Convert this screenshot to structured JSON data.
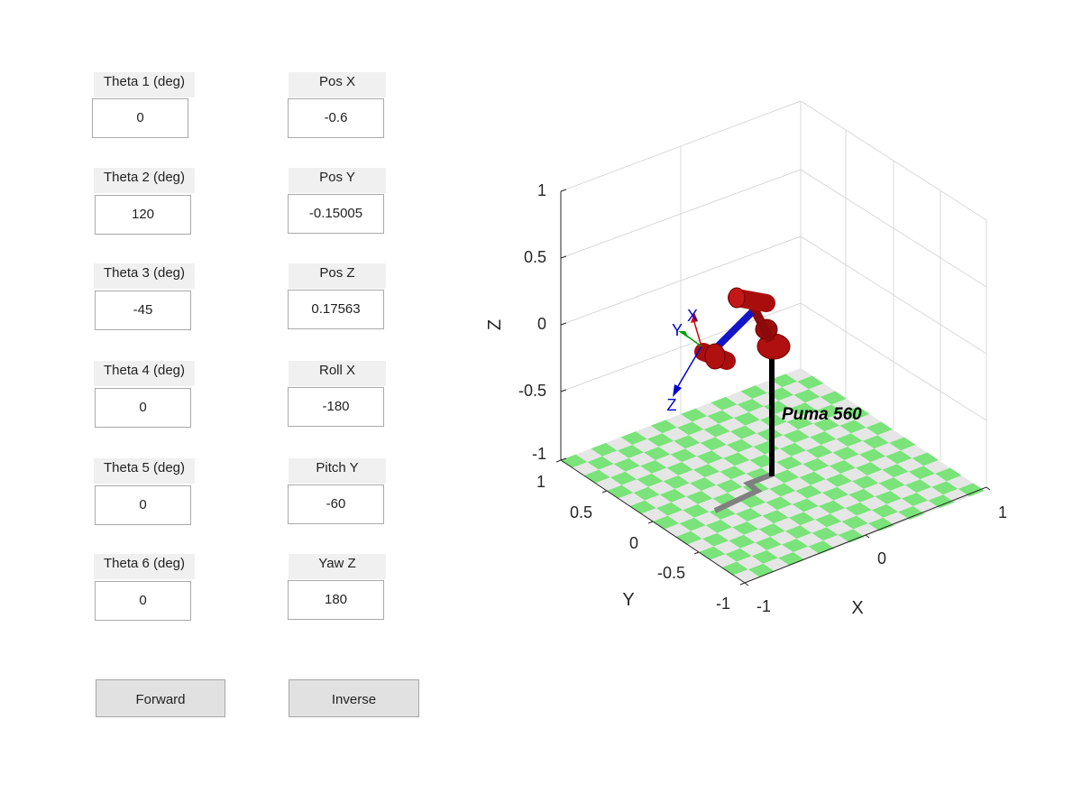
{
  "joints": [
    {
      "label": "Theta 1 (deg)",
      "value": "0"
    },
    {
      "label": "Theta 2 (deg)",
      "value": "120"
    },
    {
      "label": "Theta 3 (deg)",
      "value": "-45"
    },
    {
      "label": "Theta 4 (deg)",
      "value": "0"
    },
    {
      "label": "Theta 5 (deg)",
      "value": "0"
    },
    {
      "label": "Theta 6 (deg)",
      "value": "0"
    }
  ],
  "pose": [
    {
      "label": "Pos X",
      "value": "-0.6"
    },
    {
      "label": "Pos Y",
      "value": "-0.15005"
    },
    {
      "label": "Pos Z",
      "value": "0.17563"
    },
    {
      "label": "Roll X",
      "value": "-180"
    },
    {
      "label": "Pitch Y",
      "value": "-60"
    },
    {
      "label": "Yaw Z",
      "value": "180"
    }
  ],
  "buttons": {
    "forward": "Forward",
    "inverse": "Inverse"
  },
  "plot": {
    "robot_name": "Puma 560",
    "axis_labels": {
      "x": "X",
      "y": "Y",
      "z": "Z"
    },
    "z_ticks": [
      "1",
      "0.5",
      "0",
      "-0.5",
      "-1"
    ],
    "y_ticks": [
      "1",
      "0.5",
      "0",
      "-0.5",
      "-1"
    ],
    "x_ticks": [
      "-1",
      "0",
      "1"
    ],
    "tool_frame_labels": {
      "x": "X",
      "y": "Y",
      "z": "Z"
    },
    "colors": {
      "link": "#b01010",
      "link_dark": "#7a0000",
      "link_blue": "#1414c8",
      "floor_green": "#7ae37a",
      "floor_gray": "#e6e6e6",
      "grid": "#d9d9d9",
      "axis_text": "#262626",
      "tool_x": "#d40000",
      "tool_y": "#00a000",
      "tool_z": "#0000cc"
    }
  }
}
